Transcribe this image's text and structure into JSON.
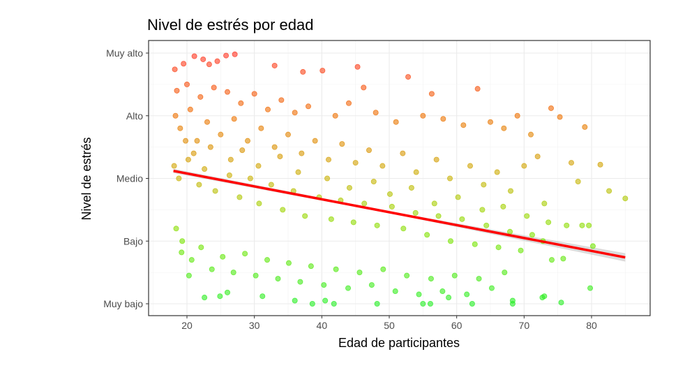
{
  "chart_data": {
    "type": "scatter",
    "title": "Nivel de estrés por edad",
    "xlabel": "Edad de participantes",
    "ylabel": "Nivel de estrés",
    "xlim": [
      14.5,
      88
    ],
    "ylim": [
      0.8,
      5.2
    ],
    "x_ticks": [
      20,
      30,
      40,
      50,
      60,
      70,
      80
    ],
    "y_ticks": [
      {
        "value": 1,
        "label": "Muy bajo"
      },
      {
        "value": 2,
        "label": "Bajo"
      },
      {
        "value": 3,
        "label": "Medio"
      },
      {
        "value": 4,
        "label": "Alto"
      },
      {
        "value": 5,
        "label": "Muy alto"
      }
    ],
    "grid": true,
    "legend": "none",
    "color_scale": {
      "low": "#22ee22",
      "mid_low": "#9fd400",
      "mid": "#c8b000",
      "mid_high": "#ee7000",
      "high": "#ff3020"
    },
    "points": [
      [
        18.2,
        4.74
      ],
      [
        19.5,
        4.83
      ],
      [
        21.1,
        4.95
      ],
      [
        22.4,
        4.9
      ],
      [
        25.8,
        4.96
      ],
      [
        27.1,
        4.98
      ],
      [
        23.3,
        4.82
      ],
      [
        24.5,
        4.87
      ],
      [
        33,
        4.8
      ],
      [
        45.3,
        4.78
      ],
      [
        52.8,
        4.62
      ],
      [
        40.1,
        4.72
      ],
      [
        37.2,
        4.7
      ],
      [
        46.2,
        4.45
      ],
      [
        63.1,
        4.43
      ],
      [
        56.3,
        4.35
      ],
      [
        18.5,
        4.4
      ],
      [
        20,
        4.5
      ],
      [
        22,
        4.3
      ],
      [
        24,
        4.45
      ],
      [
        26,
        4.38
      ],
      [
        28,
        4.2
      ],
      [
        30,
        4.35
      ],
      [
        32,
        4.1
      ],
      [
        34,
        4.25
      ],
      [
        36,
        4.05
      ],
      [
        38,
        4.15
      ],
      [
        42,
        4.0
      ],
      [
        44,
        4.2
      ],
      [
        48,
        4.05
      ],
      [
        51,
        3.9
      ],
      [
        55,
        4.0
      ],
      [
        58,
        3.95
      ],
      [
        61,
        3.85
      ],
      [
        65,
        3.9
      ],
      [
        67,
        3.8
      ],
      [
        69,
        4.0
      ],
      [
        74,
        4.12
      ],
      [
        75.3,
        3.98
      ],
      [
        79,
        3.82
      ],
      [
        71,
        3.7
      ],
      [
        18.3,
        4.0
      ],
      [
        19,
        3.8
      ],
      [
        20.5,
        4.1
      ],
      [
        21.5,
        3.6
      ],
      [
        23,
        3.9
      ],
      [
        25,
        3.7
      ],
      [
        27,
        3.95
      ],
      [
        29,
        3.6
      ],
      [
        31,
        3.8
      ],
      [
        33,
        3.5
      ],
      [
        35,
        3.7
      ],
      [
        37,
        3.4
      ],
      [
        39,
        3.6
      ],
      [
        41,
        3.3
      ],
      [
        43,
        3.55
      ],
      [
        45,
        3.25
      ],
      [
        47,
        3.45
      ],
      [
        49,
        3.2
      ],
      [
        52,
        3.4
      ],
      [
        54,
        3.1
      ],
      [
        57,
        3.3
      ],
      [
        59,
        3.0
      ],
      [
        62,
        3.2
      ],
      [
        64,
        2.9
      ],
      [
        66,
        3.1
      ],
      [
        68,
        2.8
      ],
      [
        70,
        3.2
      ],
      [
        72,
        3.35
      ],
      [
        73,
        2.6
      ],
      [
        77,
        3.25
      ],
      [
        78,
        2.95
      ],
      [
        81.3,
        3.22
      ],
      [
        82.6,
        2.8
      ],
      [
        85,
        2.68
      ],
      [
        18.1,
        3.2
      ],
      [
        18.8,
        3.0
      ],
      [
        20.2,
        3.3
      ],
      [
        21.8,
        2.9
      ],
      [
        22.6,
        3.15
      ],
      [
        24.2,
        2.8
      ],
      [
        26.3,
        3.05
      ],
      [
        27.8,
        2.7
      ],
      [
        29.4,
        3.0
      ],
      [
        30.7,
        2.6
      ],
      [
        32.5,
        2.9
      ],
      [
        34.2,
        2.5
      ],
      [
        35.8,
        2.8
      ],
      [
        37.5,
        2.4
      ],
      [
        39.6,
        2.7
      ],
      [
        41.4,
        2.35
      ],
      [
        42.8,
        2.65
      ],
      [
        44.7,
        2.3
      ],
      [
        46.3,
        2.6
      ],
      [
        48.2,
        2.25
      ],
      [
        50.4,
        2.55
      ],
      [
        52.1,
        2.2
      ],
      [
        53.9,
        2.45
      ],
      [
        55.6,
        2.1
      ],
      [
        57.3,
        2.4
      ],
      [
        59.1,
        2.0
      ],
      [
        60.8,
        2.35
      ],
      [
        62.7,
        1.95
      ],
      [
        64.4,
        2.25
      ],
      [
        66.2,
        1.9
      ],
      [
        67.9,
        2.15
      ],
      [
        69.5,
        1.85
      ],
      [
        71.2,
        2.1
      ],
      [
        72.8,
        2.0
      ],
      [
        74.1,
        1.7
      ],
      [
        75.8,
        1.72
      ],
      [
        76.3,
        2.25
      ],
      [
        78.6,
        2.25
      ],
      [
        79.6,
        2.25
      ],
      [
        80.2,
        1.92
      ],
      [
        18.4,
        2.2
      ],
      [
        19.3,
        2.0
      ],
      [
        20.7,
        1.7
      ],
      [
        22.1,
        1.9
      ],
      [
        23.7,
        1.55
      ],
      [
        25.3,
        1.75
      ],
      [
        26.9,
        1.5
      ],
      [
        28.6,
        1.8
      ],
      [
        30.2,
        1.45
      ],
      [
        31.9,
        1.7
      ],
      [
        33.5,
        1.4
      ],
      [
        35.1,
        1.65
      ],
      [
        36.8,
        1.35
      ],
      [
        38.4,
        1.6
      ],
      [
        40.3,
        1.3
      ],
      [
        42.1,
        1.55
      ],
      [
        43.9,
        1.25
      ],
      [
        45.6,
        1.5
      ],
      [
        47.4,
        1.3
      ],
      [
        49.1,
        1.55
      ],
      [
        50.9,
        1.2
      ],
      [
        52.6,
        1.45
      ],
      [
        54.4,
        1.15
      ],
      [
        56.2,
        1.4
      ],
      [
        57.9,
        1.2
      ],
      [
        59.7,
        1.45
      ],
      [
        61.5,
        1.15
      ],
      [
        63.3,
        1.4
      ],
      [
        65.2,
        1.25
      ],
      [
        67.1,
        1.5
      ],
      [
        68.3,
        1.05
      ],
      [
        19.2,
        1.82
      ],
      [
        20.3,
        1.45
      ],
      [
        22.6,
        1.1
      ],
      [
        24.9,
        1.12
      ],
      [
        26,
        1.18
      ],
      [
        31.2,
        1.12
      ],
      [
        36,
        1.05
      ],
      [
        38.6,
        1.0
      ],
      [
        40.5,
        1.05
      ],
      [
        41.8,
        1.0
      ],
      [
        48.2,
        1.0
      ],
      [
        55,
        1.0
      ],
      [
        56.1,
        1.0
      ],
      [
        58.8,
        1.1
      ],
      [
        62.3,
        1.0
      ],
      [
        68.3,
        1.0
      ],
      [
        72.7,
        1.1
      ],
      [
        73,
        1.12
      ],
      [
        75.5,
        1.02
      ],
      [
        79.8,
        1.25
      ],
      [
        19.8,
        3.6
      ],
      [
        21,
        3.4
      ],
      [
        23.5,
        3.5
      ],
      [
        26.5,
        3.3
      ],
      [
        28.2,
        3.45
      ],
      [
        30.6,
        3.2
      ],
      [
        33.8,
        3.35
      ],
      [
        36.5,
        3.1
      ],
      [
        40.8,
        3.0
      ],
      [
        44.1,
        2.85
      ],
      [
        47.7,
        2.95
      ],
      [
        50.1,
        2.75
      ],
      [
        53.3,
        2.85
      ],
      [
        56.7,
        2.6
      ],
      [
        60.2,
        2.7
      ],
      [
        63.8,
        2.5
      ],
      [
        66.9,
        2.55
      ],
      [
        70.4,
        2.4
      ],
      [
        73.6,
        2.3
      ]
    ],
    "trend_line": {
      "type": "linear",
      "x": [
        18,
        85
      ],
      "y": [
        3.12,
        1.74
      ],
      "color": "#ff0000",
      "confidence_band": true
    }
  }
}
